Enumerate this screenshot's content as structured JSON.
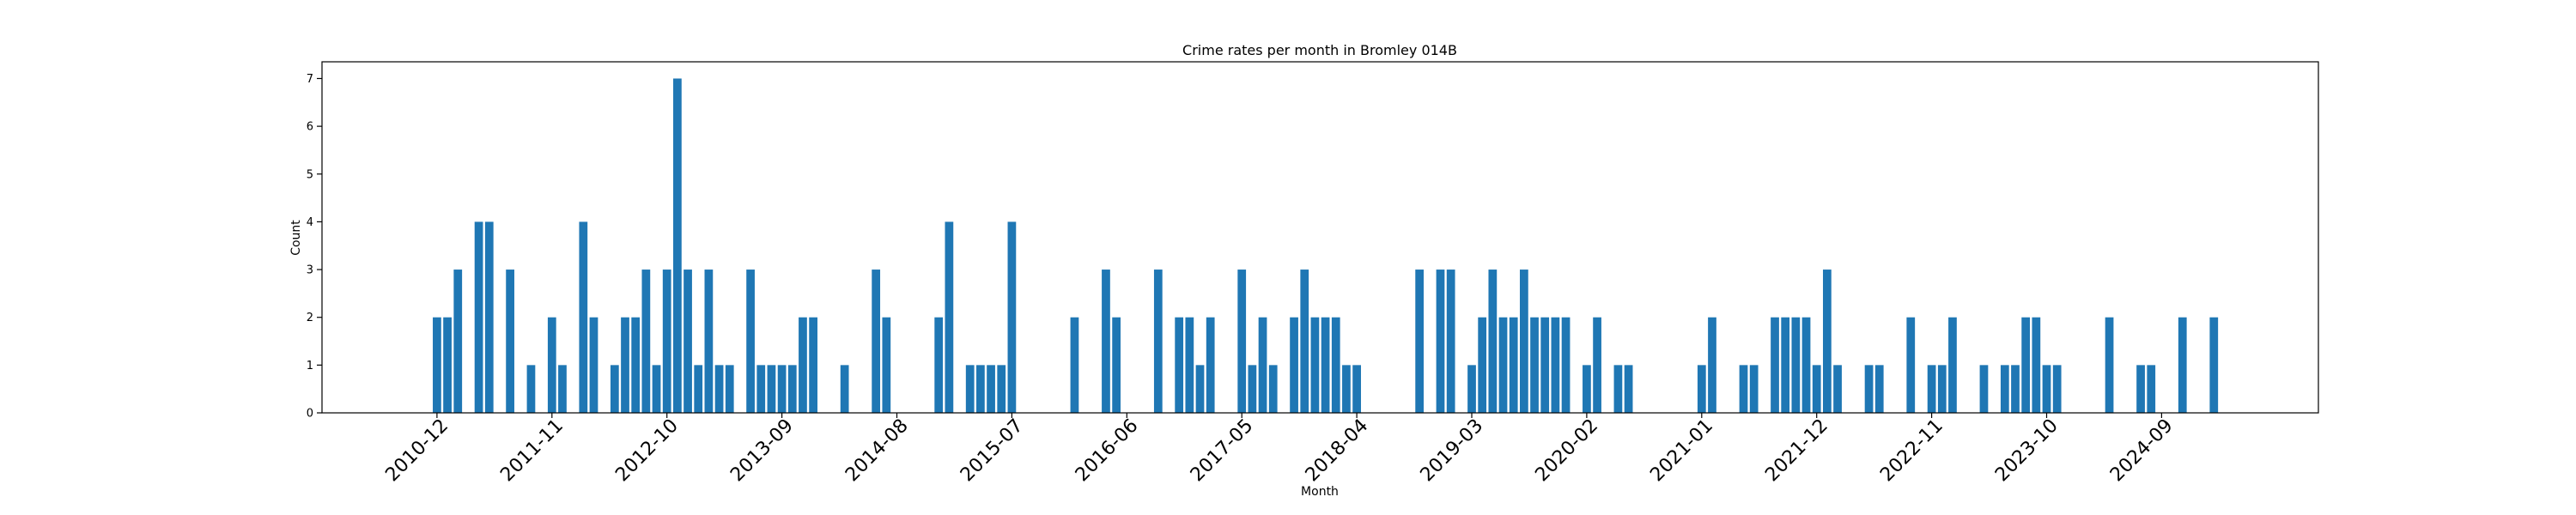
{
  "chart_data": {
    "type": "bar",
    "title": "Crime rates per month in Bromley 014B",
    "xlabel": "Month",
    "ylabel": "Count",
    "ylim": [
      0,
      7.35
    ],
    "yticks": [
      0,
      1,
      2,
      3,
      4,
      5,
      6,
      7
    ],
    "xticks": [
      "2010-12",
      "2011-11",
      "2012-10",
      "2013-09",
      "2014-08",
      "2015-07",
      "2016-06",
      "2017-05",
      "2018-04",
      "2019-03",
      "2020-02",
      "2021-01",
      "2021-12",
      "2022-11",
      "2023-10",
      "2024-09"
    ],
    "grid": false,
    "color": "#1f77b4",
    "categories": [
      "2010-12",
      "2011-01",
      "2011-02",
      "2011-04",
      "2011-05",
      "2011-07",
      "2011-09",
      "2011-11",
      "2011-12",
      "2012-02",
      "2012-03",
      "2012-05",
      "2012-06",
      "2012-07",
      "2012-08",
      "2012-09",
      "2012-10",
      "2012-11",
      "2012-12",
      "2013-01",
      "2013-02",
      "2013-03",
      "2013-04",
      "2013-06",
      "2013-07",
      "2013-08",
      "2013-09",
      "2013-10",
      "2013-11",
      "2013-12",
      "2014-03",
      "2014-06",
      "2014-07",
      "2014-12",
      "2015-01",
      "2015-03",
      "2015-04",
      "2015-05",
      "2015-06",
      "2015-07",
      "2016-01",
      "2016-04",
      "2016-05",
      "2016-09",
      "2016-11",
      "2016-12",
      "2017-01",
      "2017-02",
      "2017-05",
      "2017-06",
      "2017-07",
      "2017-08",
      "2017-10",
      "2017-11",
      "2017-12",
      "2018-01",
      "2018-02",
      "2018-03",
      "2018-04",
      "2018-10",
      "2018-12",
      "2019-01",
      "2019-03",
      "2019-04",
      "2019-05",
      "2019-06",
      "2019-07",
      "2019-08",
      "2019-09",
      "2019-10",
      "2019-11",
      "2019-12",
      "2020-02",
      "2020-03",
      "2020-05",
      "2020-06",
      "2021-01",
      "2021-02",
      "2021-05",
      "2021-06",
      "2021-08",
      "2021-09",
      "2021-10",
      "2021-11",
      "2021-12",
      "2022-01",
      "2022-02",
      "2022-05",
      "2022-06",
      "2022-09",
      "2022-11",
      "2022-12",
      "2023-01",
      "2023-04",
      "2023-06",
      "2023-07",
      "2023-08",
      "2023-09",
      "2023-10",
      "2023-11",
      "2024-04",
      "2024-07",
      "2024-08",
      "2024-11",
      "2025-02"
    ],
    "values": [
      2,
      2,
      3,
      4,
      4,
      3,
      1,
      2,
      1,
      4,
      2,
      1,
      2,
      2,
      3,
      1,
      3,
      7,
      3,
      1,
      3,
      1,
      1,
      3,
      1,
      1,
      1,
      1,
      2,
      2,
      1,
      3,
      2,
      2,
      4,
      1,
      1,
      1,
      1,
      4,
      2,
      3,
      2,
      3,
      2,
      2,
      1,
      2,
      3,
      1,
      2,
      1,
      2,
      3,
      2,
      2,
      2,
      1,
      1,
      3,
      3,
      3,
      1,
      2,
      3,
      2,
      2,
      3,
      2,
      2,
      2,
      2,
      1,
      2,
      1,
      1,
      1,
      2,
      1,
      1,
      2,
      2,
      2,
      2,
      1,
      3,
      1,
      1,
      1,
      2,
      1,
      1,
      2,
      1,
      1,
      1,
      2,
      2,
      1,
      1,
      2,
      1,
      1,
      2,
      2
    ],
    "x_start": "2010-01",
    "x_end": "2025-12"
  }
}
